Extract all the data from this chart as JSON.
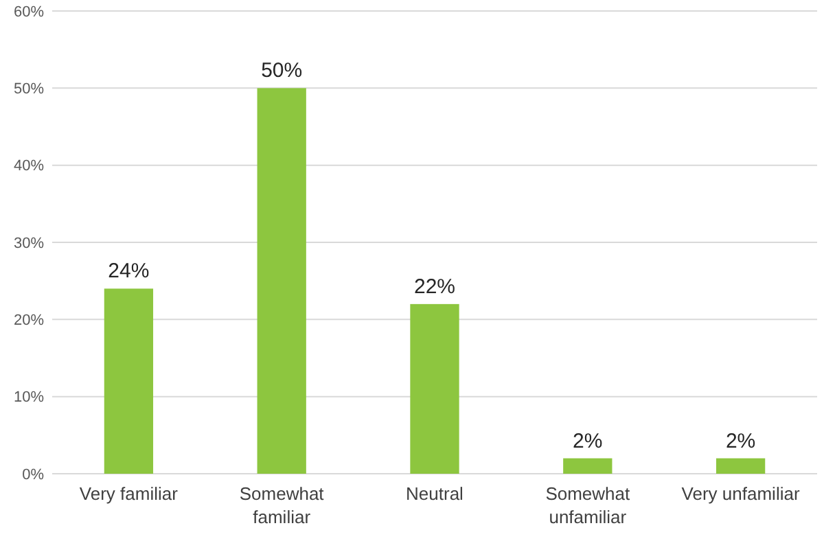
{
  "chart_data": {
    "type": "bar",
    "categories": [
      "Very familiar",
      "Somewhat familiar",
      "Neutral",
      "Somewhat unfamiliar",
      "Very unfamiliar"
    ],
    "values": [
      24,
      50,
      22,
      2,
      2
    ],
    "value_labels": [
      "24%",
      "50%",
      "22%",
      "2%",
      "2%"
    ],
    "color": "#8dc63f",
    "ylim": [
      0,
      60
    ],
    "yticks": [
      {
        "value": 0,
        "label": "0%"
      },
      {
        "value": 10,
        "label": "10%"
      },
      {
        "value": 20,
        "label": "20%"
      },
      {
        "value": 30,
        "label": "30%"
      },
      {
        "value": 40,
        "label": "40%"
      },
      {
        "value": 50,
        "label": "50%"
      },
      {
        "value": 60,
        "label": "60%"
      }
    ],
    "grid": true
  }
}
